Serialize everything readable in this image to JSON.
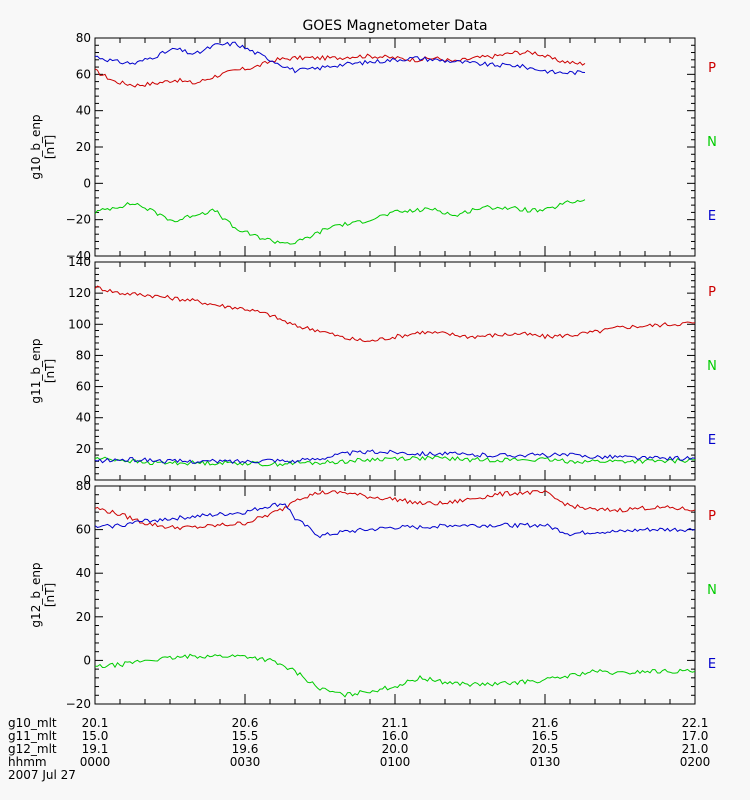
{
  "chart_data": {
    "type": "line",
    "title": "GOES Magnetometer Data",
    "x_range_minutes": [
      0,
      120
    ],
    "x_major_ticks": [
      0,
      30,
      60,
      90,
      120
    ],
    "x_minor_step": 5,
    "legend": [
      {
        "label": "P",
        "color": "#cc0000"
      },
      {
        "label": "N",
        "color": "#00cc00"
      },
      {
        "label": "E",
        "color": "#0000cc"
      }
    ],
    "panels": [
      {
        "ylabel": "g10_b_enp",
        "unit": "[nT]",
        "ylim": [
          -40,
          80
        ],
        "yticks": [
          -40,
          -20,
          0,
          20,
          40,
          60,
          80
        ],
        "yticklabels": [
          "−40",
          "−20",
          "0",
          "20",
          "40",
          "60",
          "80"
        ],
        "series": [
          {
            "name": "P",
            "color": "#cc0000",
            "x": [
              0,
              4,
              8,
              12,
              16,
              20,
              24,
              28,
              32,
              36,
              40,
              44,
              48,
              52,
              56,
              60,
              64,
              68,
              72,
              76,
              80,
              84,
              88,
              90,
              92,
              94,
              96,
              98
            ],
            "values": [
              62,
              56,
              54,
              55,
              57,
              55,
              59,
              62,
              64,
              68,
              69,
              69,
              69,
              70,
              70,
              69,
              68,
              69,
              67,
              69,
              70,
              72,
              72,
              70,
              68,
              67,
              66,
              66
            ]
          },
          {
            "name": "N",
            "color": "#00cc00",
            "x": [
              0,
              4,
              8,
              12,
              16,
              20,
              24,
              28,
              32,
              36,
              40,
              44,
              48,
              52,
              56,
              60,
              64,
              68,
              72,
              76,
              80,
              84,
              88,
              90,
              92,
              94,
              96,
              98
            ],
            "values": [
              -16,
              -13,
              -11,
              -16,
              -21,
              -17,
              -15,
              -25,
              -29,
              -32,
              -33,
              -28,
              -23,
              -22,
              -19,
              -16,
              -15,
              -14,
              -18,
              -14,
              -13,
              -14,
              -15,
              -15,
              -13,
              -11,
              -10,
              -9
            ]
          },
          {
            "name": "E",
            "color": "#0000cc",
            "x": [
              0,
              4,
              8,
              12,
              16,
              20,
              24,
              28,
              32,
              36,
              40,
              44,
              48,
              52,
              56,
              60,
              64,
              68,
              72,
              76,
              80,
              84,
              88,
              90,
              92,
              94,
              96,
              98
            ],
            "values": [
              70,
              67,
              66,
              70,
              74,
              71,
              76,
              77,
              72,
              67,
              62,
              63,
              65,
              66,
              67,
              68,
              69,
              68,
              67,
              66,
              65,
              65,
              63,
              62,
              61,
              61,
              61,
              61
            ]
          }
        ]
      },
      {
        "ylabel": "g11_b_enp",
        "unit": "[nT]",
        "ylim": [
          0,
          140
        ],
        "yticks": [
          0,
          20,
          40,
          60,
          80,
          100,
          120,
          140
        ],
        "yticklabels": [
          "0",
          "20",
          "40",
          "60",
          "80",
          "100",
          "120",
          "140"
        ],
        "series": [
          {
            "name": "P",
            "color": "#cc0000",
            "x": [
              0,
              5,
              10,
              15,
              20,
              25,
              30,
              35,
              40,
              45,
              50,
              55,
              58,
              62,
              65,
              70,
              75,
              80,
              85,
              90,
              95,
              100,
              105,
              110,
              115,
              120
            ],
            "values": [
              124,
              120,
              119,
              117,
              115,
              112,
              110,
              106,
              99,
              96,
              91,
              89,
              91,
              93,
              95,
              94,
              92,
              93,
              94,
              92,
              93,
              95,
              98,
              99,
              100,
              101
            ]
          },
          {
            "name": "N",
            "color": "#00cc00",
            "x": [
              0,
              5,
              10,
              15,
              20,
              25,
              30,
              35,
              40,
              45,
              50,
              55,
              60,
              65,
              70,
              75,
              80,
              85,
              90,
              95,
              100,
              105,
              110,
              115,
              120
            ],
            "values": [
              14,
              13,
              11,
              11,
              11,
              11,
              11,
              10,
              11,
              11,
              12,
              13,
              14,
              14,
              14,
              13,
              13,
              13,
              13,
              12,
              12,
              12,
              12,
              12,
              13
            ]
          },
          {
            "name": "E",
            "color": "#0000cc",
            "x": [
              0,
              5,
              10,
              15,
              20,
              25,
              30,
              35,
              40,
              45,
              50,
              55,
              60,
              65,
              70,
              75,
              80,
              85,
              90,
              95,
              100,
              105,
              110,
              115,
              120
            ],
            "values": [
              12,
              13,
              13,
              12,
              12,
              12,
              12,
              13,
              12,
              14,
              17,
              18,
              18,
              17,
              17,
              16,
              16,
              16,
              16,
              16,
              15,
              15,
              14,
              14,
              14
            ]
          }
        ]
      },
      {
        "ylabel": "g12_b_enp",
        "unit": "[nT]",
        "ylim": [
          -20,
          80
        ],
        "yticks": [
          -20,
          0,
          20,
          40,
          60,
          80
        ],
        "yticklabels": [
          "−20",
          "0",
          "20",
          "40",
          "60",
          "80"
        ],
        "series": [
          {
            "name": "P",
            "color": "#cc0000",
            "x": [
              0,
              5,
              10,
              15,
              20,
              25,
              30,
              35,
              38,
              40,
              45,
              50,
              55,
              60,
              65,
              70,
              75,
              80,
              85,
              90,
              93,
              95,
              100,
              105,
              110,
              115,
              120
            ],
            "values": [
              70,
              67,
              63,
              61,
              61,
              62,
              63,
              67,
              70,
              74,
              77,
              77,
              75,
              74,
              72,
              72,
              74,
              76,
              77,
              77,
              73,
              71,
              69,
              69,
              70,
              70,
              69
            ]
          },
          {
            "name": "N",
            "color": "#00cc00",
            "x": [
              0,
              5,
              10,
              15,
              20,
              25,
              30,
              35,
              40,
              45,
              50,
              55,
              60,
              65,
              70,
              75,
              80,
              85,
              90,
              95,
              100,
              105,
              110,
              115,
              120
            ],
            "values": [
              -3,
              -2,
              0,
              1,
              2,
              2,
              2,
              0,
              -5,
              -13,
              -16,
              -14,
              -12,
              -8,
              -10,
              -11,
              -11,
              -10,
              -9,
              -7,
              -5,
              -6,
              -5,
              -5,
              -5
            ]
          },
          {
            "name": "E",
            "color": "#0000cc",
            "x": [
              0,
              5,
              10,
              15,
              20,
              25,
              30,
              35,
              38,
              40,
              45,
              50,
              55,
              60,
              65,
              70,
              75,
              80,
              85,
              90,
              95,
              100,
              105,
              110,
              115,
              120
            ],
            "values": [
              61,
              62,
              64,
              65,
              66,
              67,
              68,
              71,
              72,
              65,
              57,
              59,
              60,
              61,
              61,
              62,
              62,
              62,
              62,
              62,
              58,
              59,
              59,
              60,
              60,
              60
            ]
          }
        ]
      }
    ],
    "x_table": {
      "row_labels": [
        "g10_mlt",
        "g11_mlt",
        "g12_mlt",
        "hhmm"
      ],
      "columns": [
        {
          "minute": 0,
          "values": [
            "20.1",
            "15.0",
            "19.1",
            "0000"
          ]
        },
        {
          "minute": 30,
          "values": [
            "20.6",
            "15.5",
            "19.6",
            "0030"
          ]
        },
        {
          "minute": 60,
          "values": [
            "21.1",
            "16.0",
            "20.0",
            "0100"
          ]
        },
        {
          "minute": 90,
          "values": [
            "21.6",
            "16.5",
            "20.5",
            "0130"
          ]
        },
        {
          "minute": 120,
          "values": [
            "22.1",
            "17.0",
            "21.0",
            "0200"
          ]
        }
      ],
      "date_label": "2007 Jul 27"
    }
  }
}
